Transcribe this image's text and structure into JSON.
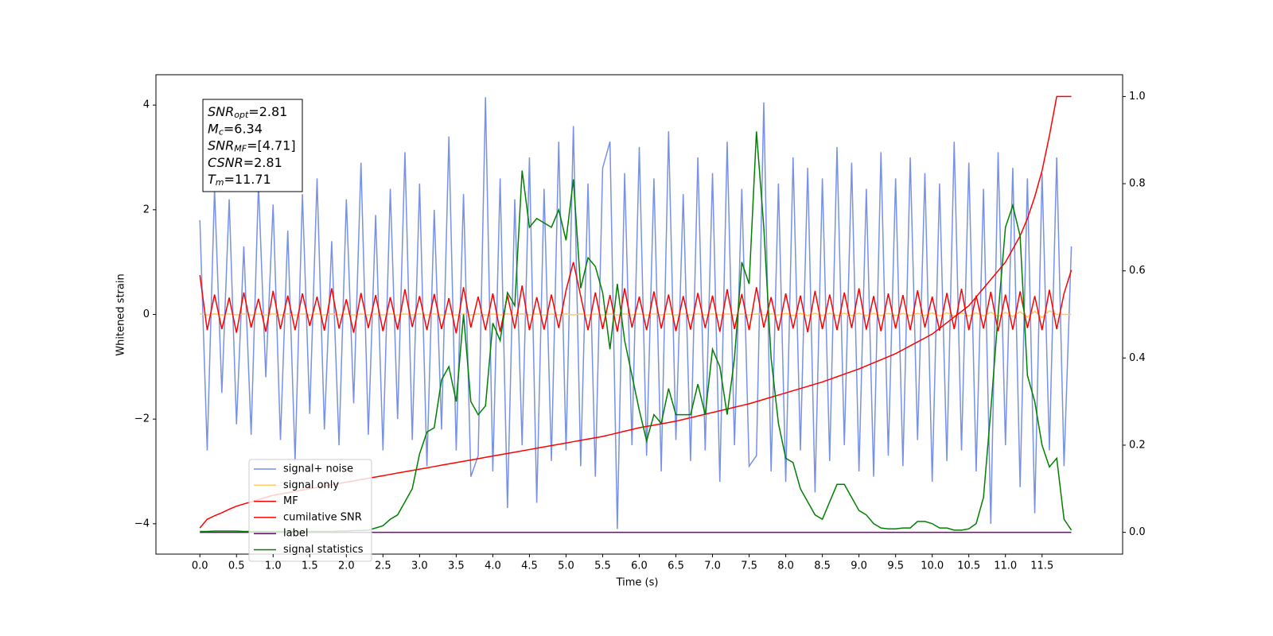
{
  "chart_data": {
    "type": "line",
    "x_label": "Time (s)",
    "y_label": "Whitened strain",
    "xlim": [
      -0.6,
      12.6
    ],
    "ylim": [
      -4.58,
      4.58
    ],
    "y2lim": [
      -0.05,
      1.05
    ],
    "xticks": [
      {
        "value": 0,
        "label": "0.0"
      },
      0.5,
      {
        "value": 1,
        "label": "1.0"
      },
      1.5,
      {
        "value": 2,
        "label": "2.0"
      },
      2.5,
      {
        "value": 3,
        "label": "3.0"
      },
      3.5,
      {
        "value": 4,
        "label": "4.0"
      },
      4.5,
      {
        "value": 5,
        "label": "5.0"
      },
      5.5,
      {
        "value": 6,
        "label": "6.0"
      },
      6.5,
      {
        "value": 7,
        "label": "7.0"
      },
      7.5,
      {
        "value": 8,
        "label": "8.0"
      },
      8.5,
      {
        "value": 9,
        "label": "9.0"
      },
      9.5,
      {
        "value": 10,
        "label": "10.0"
      },
      10.5,
      {
        "value": 11,
        "label": "11.0"
      },
      11.5
    ],
    "yticks": [
      {
        "value": -4,
        "label": "−4"
      },
      {
        "value": -2,
        "label": "−2"
      },
      0,
      2,
      4
    ],
    "y2ticks": [
      {
        "value": 0,
        "label": "0.0"
      },
      0.2,
      0.4,
      0.6,
      0.8,
      {
        "value": 1,
        "label": "1.0"
      }
    ],
    "legend": "lower left",
    "annotations": [
      {
        "name": "SNR",
        "sub": "opt",
        "text": "=2.81"
      },
      {
        "name": "M",
        "sub": "c",
        "text": "=6.34"
      },
      {
        "name": "SNR",
        "sub": "MF",
        "text": "=[4.71]"
      },
      {
        "name": "CSNR",
        "text": "=2.81"
      },
      {
        "name": "T",
        "sub": "m",
        "text": "=11.71"
      }
    ],
    "x": [
      0,
      0.1,
      0.2,
      0.3,
      0.4,
      0.5,
      0.6,
      0.7,
      0.8,
      0.9,
      1,
      1.1,
      1.2,
      1.3,
      1.4,
      1.5,
      1.6,
      1.7,
      1.8,
      1.9,
      2,
      2.1,
      2.2,
      2.3,
      2.4,
      2.5,
      2.6,
      2.7,
      2.8,
      2.9,
      3,
      3.1,
      3.2,
      3.3,
      3.4,
      3.5,
      3.6,
      3.7,
      3.8,
      3.9,
      4,
      4.1,
      4.2,
      4.3,
      4.4,
      4.5,
      4.6,
      4.7,
      4.8,
      4.9,
      5,
      5.1,
      5.2,
      5.3,
      5.4,
      5.5,
      5.6,
      5.7,
      5.8,
      5.9,
      6,
      6.1,
      6.2,
      6.3,
      6.4,
      6.5,
      6.6,
      6.7,
      6.8,
      6.9,
      7,
      7.1,
      7.2,
      7.3,
      7.4,
      7.5,
      7.6,
      7.7,
      7.8,
      7.9,
      8,
      8.1,
      8.2,
      8.3,
      8.4,
      8.5,
      8.6,
      8.7,
      8.8,
      8.9,
      9,
      9.1,
      9.2,
      9.3,
      9.4,
      9.5,
      9.6,
      9.7,
      9.8,
      9.9,
      10,
      10.1,
      10.2,
      10.3,
      10.4,
      10.5,
      10.6,
      10.7,
      10.8,
      10.9,
      11,
      11.1,
      11.2,
      11.3,
      11.4,
      11.5,
      11.6,
      11.7,
      11.8,
      11.9
    ],
    "series": [
      {
        "name": "signal+ noise",
        "color": "#7791e7",
        "values": [
          1.8,
          -2.6,
          2.4,
          -1.5,
          2.2,
          -2.1,
          1.3,
          -2.3,
          2.5,
          -1.2,
          2.1,
          -2.4,
          1.6,
          -2.8,
          2.3,
          -1.9,
          2.6,
          -2.2,
          1.4,
          -2.5,
          2.2,
          -1.7,
          2.9,
          -2.3,
          1.9,
          -2.6,
          2.4,
          -2.0,
          3.1,
          -2.4,
          2.5,
          -2.9,
          2.0,
          -2.2,
          3.4,
          -2.6,
          2.3,
          -3.1,
          -2.7,
          4.15,
          -3.0,
          2.6,
          -3.7,
          2.2,
          -2.5,
          3.0,
          -3.6,
          2.4,
          -2.8,
          3.3,
          -2.6,
          3.6,
          -2.9,
          2.5,
          -3.1,
          2.8,
          3.3,
          -4.1,
          2.7,
          -2.5,
          3.2,
          -2.7,
          2.6,
          -3.0,
          3.5,
          -2.4,
          2.3,
          -2.8,
          3.0,
          -2.6,
          2.7,
          -3.2,
          3.3,
          -2.5,
          2.4,
          -2.9,
          -2.7,
          4.05,
          -3.0,
          2.5,
          -3.2,
          3.0,
          -2.6,
          2.8,
          -3.4,
          2.6,
          -2.8,
          3.2,
          -2.5,
          2.9,
          -3.0,
          2.4,
          -3.1,
          3.1,
          -2.7,
          2.6,
          -2.9,
          3.0,
          -2.4,
          2.7,
          -3.2,
          2.5,
          -2.8,
          3.3,
          -2.6,
          2.9,
          -3.0,
          2.4,
          -4.0,
          3.1,
          -2.5,
          2.8,
          -3.3,
          2.6,
          -3.8,
          2.7,
          -2.6,
          3.0,
          -2.9,
          1.3
        ]
      },
      {
        "name": "signal only",
        "color": "#ffc966",
        "values": [
          0.01,
          -0.01,
          0.01,
          -0.01,
          0.01,
          -0.01,
          0.01,
          -0.01,
          0.01,
          -0.01,
          0.01,
          -0.01,
          0.01,
          -0.01,
          0.01,
          -0.01,
          0.01,
          -0.01,
          0.01,
          -0.01,
          0.01,
          -0.01,
          0.01,
          -0.01,
          0.01,
          -0.01,
          0.01,
          -0.01,
          0.01,
          -0.01,
          0.01,
          -0.01,
          0.01,
          -0.01,
          0.01,
          -0.01,
          0.01,
          -0.01,
          0.01,
          -0.01,
          0.01,
          -0.01,
          0.01,
          -0.01,
          0.01,
          -0.01,
          0.01,
          -0.01,
          0.01,
          -0.01,
          0.01,
          -0.01,
          0.01,
          -0.01,
          0.01,
          -0.01,
          0.01,
          -0.01,
          0.01,
          -0.01,
          0.01,
          -0.01,
          0.01,
          -0.01,
          0.01,
          -0.01,
          0.01,
          -0.01,
          0.01,
          -0.01,
          0.01,
          -0.01,
          0.01,
          -0.01,
          0.01,
          -0.01,
          0.01,
          -0.01,
          0.01,
          -0.01,
          0.02,
          -0.02,
          0.02,
          -0.02,
          0.02,
          -0.02,
          0.02,
          -0.02,
          0.02,
          -0.02,
          0.02,
          -0.02,
          0.02,
          -0.02,
          0.02,
          -0.02,
          0.02,
          -0.02,
          0.02,
          -0.02,
          0.03,
          -0.03,
          0.03,
          -0.03,
          0.03,
          -0.03,
          0.03,
          -0.03,
          0.04,
          -0.04,
          0.04,
          -0.04,
          0.05,
          -0.05,
          0.06,
          -0.06,
          0.07,
          0,
          0,
          0
        ]
      },
      {
        "name": "MF",
        "color": "#ff0000",
        "values": [
          0.75,
          -0.3,
          0.38,
          -0.28,
          0.32,
          -0.35,
          0.42,
          -0.25,
          0.3,
          -0.33,
          0.45,
          -0.28,
          0.36,
          -0.3,
          0.4,
          -0.22,
          0.34,
          -0.31,
          0.5,
          -0.27,
          0.29,
          -0.35,
          0.41,
          -0.26,
          0.37,
          -0.32,
          0.33,
          -0.29,
          0.48,
          -0.24,
          0.35,
          -0.3,
          0.39,
          -0.28,
          0.31,
          -0.36,
          0.52,
          -0.25,
          0.34,
          -0.3,
          0.4,
          -0.33,
          0.36,
          -0.27,
          0.55,
          -0.3,
          0.33,
          -0.29,
          0.38,
          -0.26,
          0.46,
          1.0,
          0.35,
          -0.3,
          0.42,
          -0.28,
          0.37,
          -0.33,
          0.5,
          -0.25,
          0.34,
          -0.3,
          0.44,
          -0.27,
          0.38,
          -0.32,
          0.35,
          -0.29,
          0.41,
          -0.26,
          0.36,
          -0.33,
          0.48,
          -0.28,
          0.39,
          -0.3,
          0.52,
          -0.25,
          0.33,
          -0.31,
          0.4,
          -0.27,
          0.36,
          -0.34,
          0.45,
          -0.28,
          0.38,
          -0.3,
          0.42,
          -0.26,
          0.5,
          -0.29,
          0.35,
          -0.32,
          0.4,
          -0.27,
          0.37,
          -0.3,
          0.46,
          -0.25,
          0.34,
          -0.31,
          0.41,
          -0.28,
          0.49,
          -0.3,
          0.36,
          -0.27,
          0.43,
          -0.32,
          0.38,
          -0.29,
          0.44,
          -0.26,
          0.35,
          -0.3,
          0.47,
          -0.28,
          0.4,
          0.85
        ]
      },
      {
        "name": "cumilative SNR",
        "color": "#ff0000",
        "axis": "y2",
        "values": [
          0.01,
          0.03,
          0.038,
          0.045,
          0.053,
          0.06,
          0.065,
          0.07,
          0.075,
          0.08,
          0.085,
          0.088,
          0.091,
          0.094,
          0.097,
          0.1,
          0.103,
          0.106,
          0.109,
          0.112,
          0.115,
          0.118,
          0.121,
          0.124,
          0.127,
          0.13,
          0.133,
          0.136,
          0.139,
          0.142,
          0.145,
          0.148,
          0.151,
          0.154,
          0.157,
          0.16,
          0.163,
          0.166,
          0.169,
          0.172,
          0.175,
          0.178,
          0.181,
          0.184,
          0.187,
          0.19,
          0.193,
          0.196,
          0.199,
          0.202,
          0.205,
          0.208,
          0.211,
          0.214,
          0.217,
          0.22,
          0.224,
          0.228,
          0.232,
          0.236,
          0.24,
          0.243,
          0.246,
          0.249,
          0.252,
          0.255,
          0.259,
          0.263,
          0.267,
          0.271,
          0.275,
          0.279,
          0.283,
          0.287,
          0.291,
          0.295,
          0.3,
          0.305,
          0.31,
          0.315,
          0.32,
          0.325,
          0.33,
          0.335,
          0.34,
          0.345,
          0.351,
          0.357,
          0.363,
          0.369,
          0.375,
          0.382,
          0.389,
          0.396,
          0.403,
          0.41,
          0.419,
          0.428,
          0.437,
          0.446,
          0.455,
          0.468,
          0.481,
          0.494,
          0.507,
          0.52,
          0.54,
          0.56,
          0.58,
          0.6,
          0.62,
          0.65,
          0.68,
          0.72,
          0.77,
          0.83,
          0.91,
          1,
          1,
          1
        ]
      },
      {
        "name": "label",
        "color": "#800080",
        "axis": "y2",
        "values": [
          0,
          0,
          0,
          0,
          0,
          0,
          0,
          0,
          0,
          0,
          0,
          0,
          0,
          0,
          0,
          0,
          0,
          0,
          0,
          0,
          0,
          0,
          0,
          0,
          0,
          0,
          0,
          0,
          0,
          0,
          0,
          0,
          0,
          0,
          0,
          0,
          0,
          0,
          0,
          0,
          0,
          0,
          0,
          0,
          0,
          0,
          0,
          0,
          0,
          0,
          0,
          0,
          0,
          0,
          0,
          0,
          0,
          0,
          0,
          0,
          0,
          0,
          0,
          0,
          0,
          0,
          0,
          0,
          0,
          0,
          0,
          0,
          0,
          0,
          0,
          0,
          0,
          0,
          0,
          0,
          0,
          0,
          0,
          0,
          0,
          0,
          0,
          0,
          0,
          0,
          0,
          0,
          0,
          0,
          0,
          0,
          0,
          0,
          0,
          0,
          0,
          0,
          0,
          0,
          0,
          0,
          0,
          0,
          0,
          0,
          0,
          0,
          0,
          0,
          0,
          0,
          0,
          0,
          0,
          0
        ]
      },
      {
        "name": "signal statistics",
        "color": "#008000",
        "axis": "y2",
        "values": [
          0.002,
          0.002,
          0.003,
          0.003,
          0.003,
          0.003,
          0.002,
          0.002,
          0.002,
          0.002,
          0.002,
          0.002,
          0.002,
          0.002,
          0.002,
          0.002,
          0.002,
          0.002,
          0.002,
          0.003,
          0.003,
          0.004,
          0.004,
          0.005,
          0.01,
          0.015,
          0.03,
          0.04,
          0.07,
          0.1,
          0.18,
          0.23,
          0.24,
          0.35,
          0.38,
          0.3,
          0.5,
          0.3,
          0.27,
          0.29,
          0.48,
          0.44,
          0.55,
          0.52,
          0.83,
          0.7,
          0.72,
          0.71,
          0.7,
          0.74,
          0.67,
          0.81,
          0.56,
          0.63,
          0.61,
          0.55,
          0.42,
          0.57,
          0.44,
          0.36,
          0.28,
          0.21,
          0.27,
          0.25,
          0.33,
          0.27,
          0.27,
          0.27,
          0.34,
          0.27,
          0.42,
          0.38,
          0.27,
          0.4,
          0.62,
          0.57,
          0.92,
          0.7,
          0.4,
          0.25,
          0.17,
          0.16,
          0.1,
          0.07,
          0.04,
          0.03,
          0.07,
          0.11,
          0.11,
          0.08,
          0.05,
          0.04,
          0.02,
          0.01,
          0.008,
          0.008,
          0.01,
          0.01,
          0.025,
          0.025,
          0.02,
          0.01,
          0.01,
          0.005,
          0.005,
          0.008,
          0.02,
          0.08,
          0.28,
          0.5,
          0.7,
          0.75,
          0.68,
          0.36,
          0.3,
          0.2,
          0.15,
          0.17,
          0.03,
          0.005
        ]
      }
    ]
  }
}
